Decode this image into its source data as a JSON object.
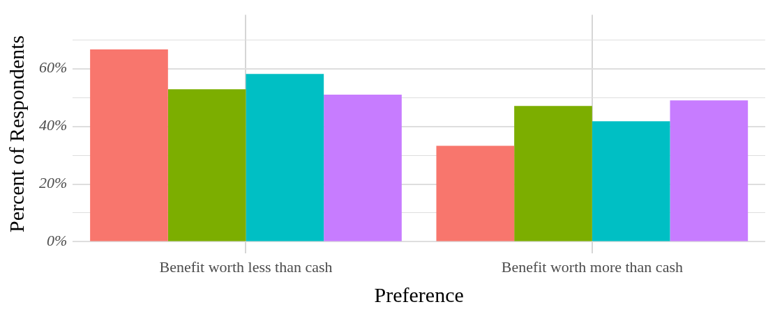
{
  "chart_data": {
    "type": "bar",
    "xlabel": "Preference",
    "ylabel": "Percent of Respondents",
    "categories": [
      "Benefit worth less than cash",
      "Benefit worth more than cash"
    ],
    "series": [
      {
        "color": "#f8766d",
        "values": [
          66.7,
          33.3
        ]
      },
      {
        "color": "#7cae00",
        "values": [
          52.9,
          47.1
        ]
      },
      {
        "color": "#00bfc4",
        "values": [
          58.2,
          41.8
        ]
      },
      {
        "color": "#c77cff",
        "values": [
          51.0,
          49.0
        ]
      }
    ],
    "ylim": [
      -3.9,
      78.7
    ],
    "yticks": [
      {
        "value": 0,
        "label": "0%"
      },
      {
        "value": 10,
        "label": null
      },
      {
        "value": 20,
        "label": "20%"
      },
      {
        "value": 30,
        "label": null
      },
      {
        "value": 40,
        "label": "40%"
      },
      {
        "value": 50,
        "label": null
      },
      {
        "value": 60,
        "label": "60%"
      },
      {
        "value": 70,
        "label": null
      }
    ],
    "grid": true,
    "legend": false
  }
}
